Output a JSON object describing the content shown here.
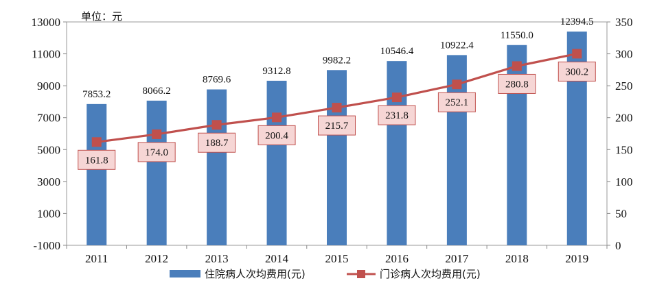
{
  "chart_data": {
    "type": "bar+line",
    "unit_label": "单位：元",
    "categories": [
      "2011",
      "2012",
      "2013",
      "2014",
      "2015",
      "2016",
      "2017",
      "2018",
      "2019"
    ],
    "series": [
      {
        "name": "住院病人次均费用(元)",
        "type": "bar",
        "axis": "left",
        "color": "#4a7ebb",
        "values": [
          7853.2,
          8066.2,
          8769.6,
          9312.8,
          9982.2,
          10546.4,
          10922.4,
          11550.0,
          12394.5
        ],
        "labels": [
          "7853.2",
          "8066.2",
          "8769.6",
          "9312.8",
          "9982.2",
          "10546.4",
          "10922.4",
          "11550.0",
          "12394.5"
        ]
      },
      {
        "name": "门诊病人次均费用(元)",
        "type": "line",
        "axis": "right",
        "color": "#c0504d",
        "values": [
          161.8,
          174.0,
          188.7,
          200.4,
          215.7,
          231.8,
          252.1,
          280.8,
          300.2
        ],
        "labels": [
          "161.8",
          "174.0",
          "188.7",
          "200.4",
          "215.7",
          "231.8",
          "252.1",
          "280.8",
          "300.2"
        ]
      }
    ],
    "y_left": {
      "min": -1000,
      "max": 13000,
      "step": 2000,
      "ticks": [
        "-1000",
        "1000",
        "3000",
        "5000",
        "7000",
        "9000",
        "11000",
        "13000"
      ]
    },
    "y_right": {
      "min": 0,
      "max": 350,
      "step": 50,
      "ticks": [
        "0",
        "50",
        "100",
        "150",
        "200",
        "250",
        "300",
        "350"
      ]
    },
    "grid": false,
    "legend_position": "bottom"
  }
}
